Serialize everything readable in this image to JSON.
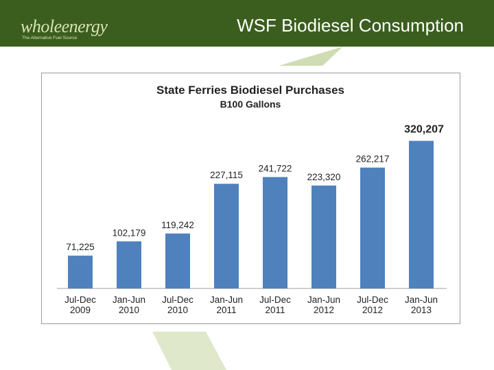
{
  "header": {
    "logo_text": "wholeenergy",
    "logo_tagline": "The Alternative Fuel Source",
    "slide_title": "WSF Biodiesel Consumption"
  },
  "colors": {
    "header_bg": "#3b5e1f",
    "bar": "#4f81bd",
    "leaf": "#cfdcb4"
  },
  "chart_data": {
    "type": "bar",
    "title": "State Ferries Biodiesel Purchases",
    "subtitle": "B100 Gallons",
    "categories": [
      [
        "Jul-Dec",
        "2009"
      ],
      [
        "Jan-Jun",
        "2010"
      ],
      [
        "Jul-Dec",
        "2010"
      ],
      [
        "Jan-Jun",
        "2011"
      ],
      [
        "Jul-Dec",
        "2011"
      ],
      [
        "Jan-Jun",
        "2012"
      ],
      [
        "Jul-Dec",
        "2012"
      ],
      [
        "Jan-Jun",
        "2013"
      ]
    ],
    "values": [
      71225,
      102179,
      119242,
      227115,
      241722,
      223320,
      262217,
      320207
    ],
    "value_labels": [
      "71,225",
      "102,179",
      "119,242",
      "227,115",
      "241,722",
      "223,320",
      "262,217",
      "320,207"
    ],
    "highlight_index": 7,
    "ylim": [
      0,
      330000
    ],
    "grid": false,
    "legend": "none"
  }
}
